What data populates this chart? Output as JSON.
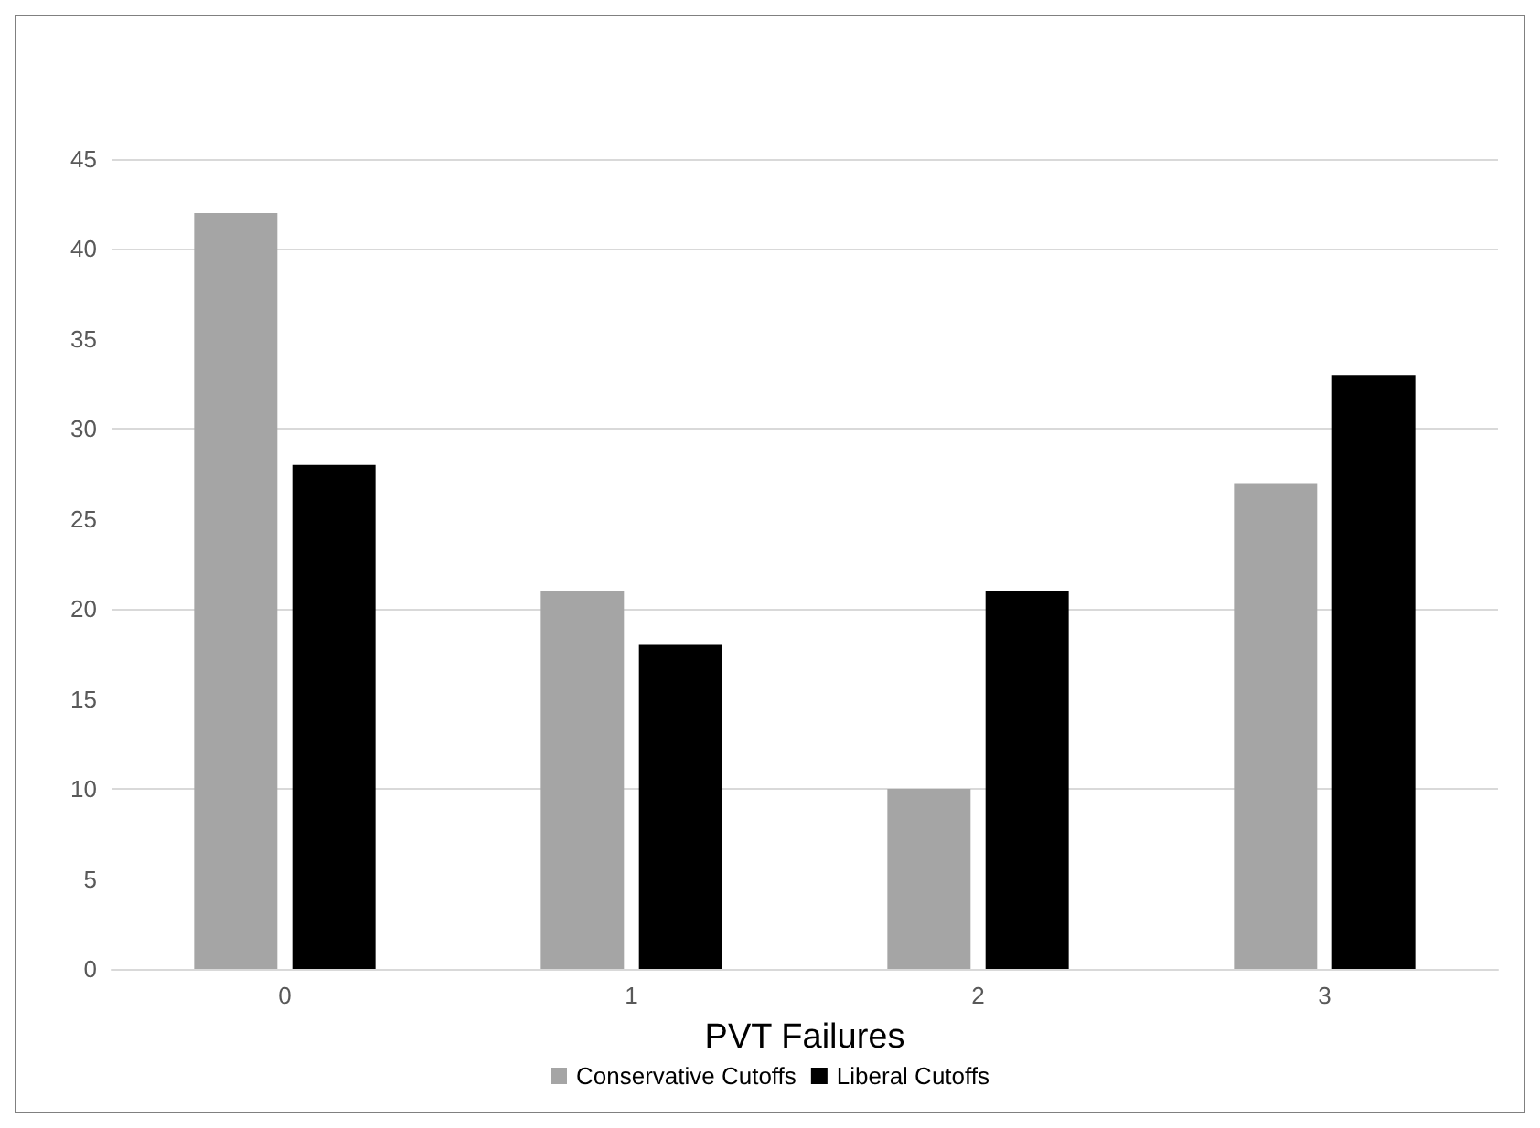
{
  "chart_data": {
    "type": "bar",
    "xlabel": "PVT Failures",
    "categories": [
      "0",
      "1",
      "2",
      "3"
    ],
    "series": [
      {
        "name": "Conservative Cutoffs",
        "color": "#a5a5a5",
        "values": [
          42,
          21,
          10,
          27
        ]
      },
      {
        "name": "Liberal Cutoffs",
        "color": "#000000",
        "values": [
          28,
          18,
          21,
          33
        ]
      }
    ],
    "ylim": [
      0,
      45
    ],
    "yticks": [
      0,
      5,
      10,
      15,
      20,
      25,
      30,
      35,
      40,
      45
    ],
    "grid": "y",
    "legend": "bottom"
  }
}
